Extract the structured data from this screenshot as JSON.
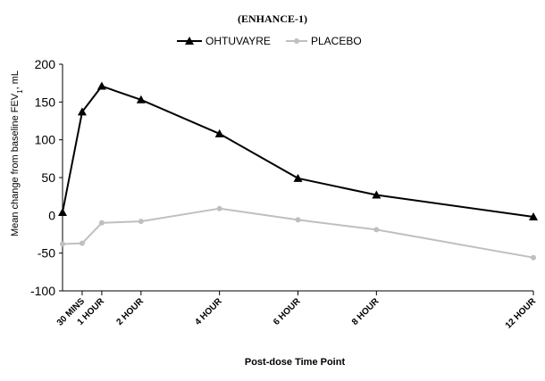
{
  "chart_data": {
    "type": "line",
    "title": "(ENHANCE-1)",
    "ylabel": "Mean change from baseline FEV",
    "ylabel_sub": "1",
    "ylabel_suffix": ", mL",
    "xlabel": "Post-dose Time Point",
    "ylim": [
      -100,
      200
    ],
    "yticks": [
      200,
      150,
      100,
      50,
      0,
      -50,
      -100
    ],
    "ytick_labels": [
      "200",
      "150",
      "100",
      "50",
      "0",
      "-50",
      "-100"
    ],
    "xlim": [
      0,
      12
    ],
    "grid": false,
    "legend_position": "top-center",
    "x_tick_positions": [
      0.5,
      1,
      2,
      4,
      6,
      8,
      12
    ],
    "x_tick_labels": [
      "30 MINS",
      "1 HOUR",
      "2 HOUR",
      "4 HOUR",
      "6 HOUR",
      "8 HOUR",
      "12 HOUR"
    ],
    "series": [
      {
        "name": "OHTUVAYRE",
        "color": "#000000",
        "marker": "triangle",
        "x": [
          0,
          0.5,
          1,
          2,
          4,
          6,
          8,
          12
        ],
        "values": [
          4,
          137,
          171,
          153,
          108,
          49,
          27,
          -2
        ]
      },
      {
        "name": "PLACEBO",
        "color": "#bfbfbf",
        "marker": "circle",
        "x": [
          0,
          0.5,
          1,
          2,
          4,
          6,
          8,
          12
        ],
        "values": [
          -38,
          -37,
          -10,
          -8,
          9,
          -6,
          -19,
          -56
        ]
      }
    ]
  }
}
